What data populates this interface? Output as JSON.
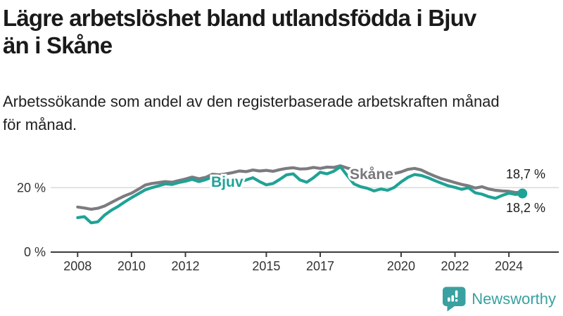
{
  "header": {
    "title_lines": [
      "Lägre arbetslöshet bland utlandsfödda i Bjuv",
      "än i Skåne"
    ],
    "subtitle_lines": [
      "Arbetssökande som andel av den registerbaserade arbetskraften månad",
      "för månad."
    ]
  },
  "footer": {
    "brand": "Newsworthy",
    "brand_color": "#3AA0A0",
    "logo_icon": "speech-bubble-bar-chart-icon"
  },
  "chart_data": {
    "type": "line",
    "title": "Lägre arbetslöshet bland utlandsfödda i Bjuv än i Skåne",
    "subtitle": "Arbetssökande som andel av den registerbaserade arbetskraften månad för månad.",
    "xlabel": "",
    "ylabel": "",
    "xlim": [
      2007.0,
      2025.85
    ],
    "ylim": [
      0,
      32.5
    ],
    "grid": "horizontal-at-20-only",
    "legend_position": "inline-series-labels",
    "grid_color": "#DADADA",
    "axis_color": "#3C3C3C",
    "x_ticks": [
      2008,
      2010,
      2012,
      2015,
      2017,
      2020,
      2022,
      2024
    ],
    "y_ticks": [
      {
        "value": 20,
        "label": "20 %"
      },
      {
        "value": 0,
        "label": "0 %"
      }
    ],
    "x": [
      2008,
      2008.25,
      2008.5,
      2008.75,
      2009,
      2009.25,
      2009.5,
      2009.75,
      2010,
      2010.25,
      2010.5,
      2010.75,
      2011,
      2011.25,
      2011.5,
      2011.75,
      2012,
      2012.25,
      2012.5,
      2012.75,
      2013,
      2013.25,
      2013.5,
      2013.75,
      2014,
      2014.25,
      2014.5,
      2014.75,
      2015,
      2015.25,
      2015.5,
      2015.75,
      2016,
      2016.25,
      2016.5,
      2016.75,
      2017,
      2017.25,
      2017.5,
      2017.75,
      2018,
      2018.25,
      2018.5,
      2018.75,
      2019,
      2019.25,
      2019.5,
      2019.75,
      2020,
      2020.25,
      2020.5,
      2020.75,
      2021,
      2021.25,
      2021.5,
      2021.75,
      2022,
      2022.25,
      2022.5,
      2022.75,
      2023,
      2023.25,
      2023.5,
      2023.75,
      2024,
      2024.25,
      2024.5
    ],
    "series": [
      {
        "name": "Skåne",
        "color": "#7B7B80",
        "end_value": 18.7,
        "end_label": "18,7 %",
        "end_dot": false,
        "values": [
          14.0,
          13.7,
          13.3,
          13.6,
          14.3,
          15.4,
          16.5,
          17.5,
          18.3,
          19.5,
          20.8,
          21.3,
          21.6,
          21.9,
          21.7,
          22.2,
          22.7,
          23.3,
          22.8,
          23.2,
          24.2,
          24.0,
          24.3,
          24.7,
          25.2,
          25.0,
          25.5,
          25.2,
          25.4,
          25.1,
          25.6,
          26.0,
          26.2,
          25.8,
          25.9,
          26.3,
          26.0,
          26.4,
          26.3,
          26.8,
          26.1,
          25.6,
          25.1,
          24.7,
          24.4,
          24.2,
          24.0,
          24.4,
          24.9,
          25.7,
          26.0,
          25.5,
          24.5,
          23.6,
          22.8,
          22.2,
          21.6,
          21.0,
          20.6,
          19.9,
          20.3,
          19.6,
          19.2,
          19.0,
          18.9,
          18.5,
          18.7
        ]
      },
      {
        "name": "Bjuv",
        "color": "#1FA396",
        "end_value": 18.2,
        "end_label": "18,2 %",
        "end_dot": true,
        "values": [
          10.7,
          11.0,
          9.1,
          9.4,
          11.5,
          13.0,
          14.2,
          15.6,
          16.9,
          18.1,
          19.3,
          20.0,
          20.6,
          21.2,
          21.0,
          21.6,
          22.0,
          22.6,
          21.9,
          22.5,
          23.3,
          22.7,
          22.1,
          21.9,
          21.8,
          22.4,
          23.1,
          21.9,
          20.9,
          21.3,
          22.6,
          24.0,
          24.3,
          22.4,
          21.7,
          23.1,
          24.8,
          24.3,
          25.1,
          26.5,
          23.8,
          21.2,
          20.3,
          19.8,
          19.0,
          19.6,
          19.2,
          20.1,
          21.8,
          23.2,
          24.1,
          23.8,
          23.1,
          22.2,
          21.4,
          20.6,
          20.1,
          19.5,
          20.0,
          18.4,
          18.0,
          17.2,
          16.7,
          17.6,
          18.3,
          17.9,
          18.2
        ]
      }
    ]
  }
}
